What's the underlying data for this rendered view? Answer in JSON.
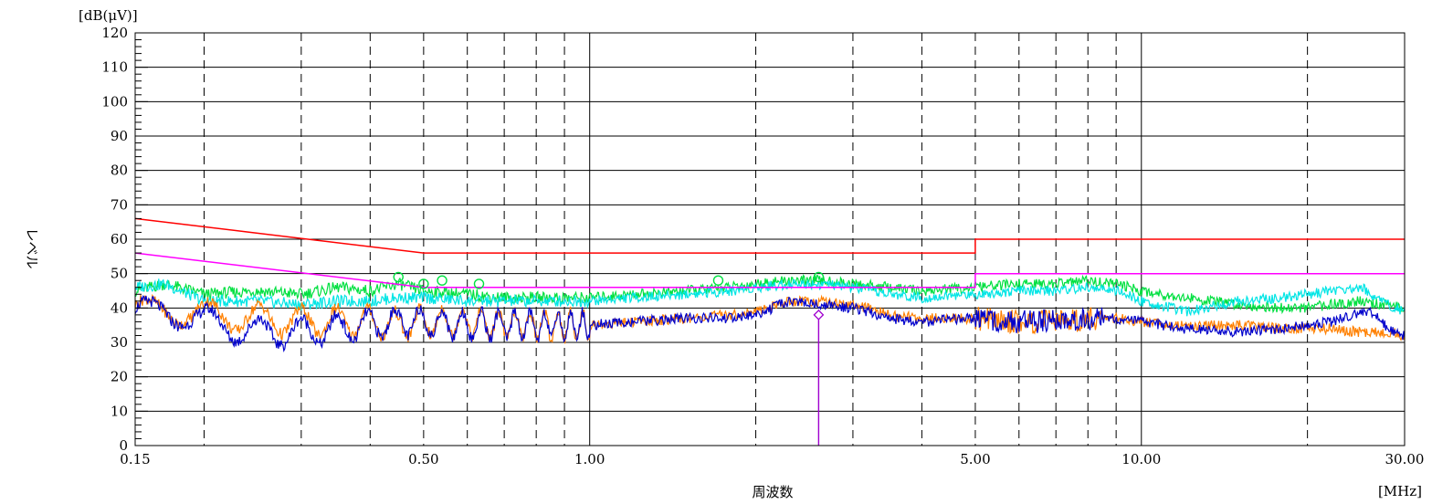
{
  "chart_data": {
    "type": "line",
    "title": "",
    "xlabel": "周波数",
    "ylabel": "レベル",
    "yunit": "[dB(μV)]",
    "xunit": "[MHz]",
    "xscale": "log",
    "xlim": [
      0.15,
      30.0
    ],
    "ylim": [
      0,
      120
    ],
    "grid": true,
    "legend": "none",
    "y_ticks": [
      0,
      10,
      20,
      30,
      40,
      50,
      60,
      70,
      80,
      90,
      100,
      110,
      120
    ],
    "x_tick_labels": [
      {
        "value": 0.15,
        "label": "0.15"
      },
      {
        "value": 0.5,
        "label": "0.50"
      },
      {
        "value": 1.0,
        "label": "1.00"
      },
      {
        "value": 5.0,
        "label": "5.00"
      },
      {
        "value": 10.0,
        "label": "10.00"
      },
      {
        "value": 30.0,
        "label": "30.00"
      }
    ],
    "x_major_grid": [
      1.0,
      10.0
    ],
    "x_minor_grid": [
      0.2,
      0.3,
      0.4,
      0.5,
      0.6,
      0.7,
      0.8,
      0.9,
      2.0,
      3.0,
      4.0,
      5.0,
      6.0,
      7.0,
      8.0,
      9.0,
      20.0
    ],
    "series": [
      {
        "color": "#ff0000",
        "x": [
          0.15,
          0.5,
          0.5,
          5.0,
          5.0,
          30.0
        ],
        "y": [
          66,
          56,
          56,
          56,
          60,
          60
        ]
      },
      {
        "color": "#ff00ff",
        "x": [
          0.15,
          0.5,
          0.5,
          5.0,
          5.0,
          30.0
        ],
        "y": [
          56,
          46,
          46,
          46,
          50,
          50
        ]
      },
      {
        "color": "#00e040",
        "x": [
          0.15,
          0.17,
          0.2,
          0.25,
          0.3,
          0.35,
          0.4,
          0.45,
          0.5,
          0.6,
          0.7,
          0.8,
          1.0,
          1.2,
          1.5,
          1.8,
          2.0,
          2.3,
          2.6,
          3.0,
          3.5,
          4.0,
          5.0,
          6.0,
          7.0,
          8.0,
          9.0,
          10.0,
          12.0,
          15.0,
          18.0,
          20.0,
          22.0,
          25.0,
          30.0
        ],
        "y": [
          45,
          47,
          44,
          45,
          44,
          46,
          45,
          47,
          45,
          44,
          43,
          43,
          43,
          44,
          45,
          46,
          47,
          48,
          48,
          47,
          46,
          45,
          46,
          47,
          47,
          48,
          47,
          45,
          43,
          41,
          40,
          40,
          41,
          42,
          40
        ]
      },
      {
        "color": "#00e5e5",
        "x": [
          0.15,
          0.17,
          0.2,
          0.25,
          0.3,
          0.35,
          0.4,
          0.45,
          0.5,
          0.6,
          0.7,
          0.8,
          1.0,
          1.2,
          1.5,
          1.8,
          2.0,
          2.3,
          2.6,
          3.0,
          3.5,
          4.0,
          5.0,
          6.0,
          7.0,
          8.0,
          9.0,
          10.0,
          12.0,
          15.0,
          18.0,
          20.0,
          22.0,
          25.0,
          28.0,
          30.0
        ],
        "y": [
          46,
          47,
          42,
          42,
          41,
          42,
          42,
          43,
          43,
          42,
          42,
          42,
          42,
          43,
          44,
          45,
          46,
          47,
          47,
          46,
          44,
          43,
          44,
          45,
          45,
          46,
          45,
          42,
          39,
          42,
          43,
          44,
          45,
          46,
          41,
          39
        ]
      },
      {
        "color": "#ff8000",
        "x": [
          0.15,
          0.17,
          0.2,
          0.25,
          0.3,
          0.35,
          0.4,
          0.45,
          0.5,
          0.6,
          0.7,
          0.8,
          1.0,
          1.2,
          1.5,
          1.8,
          2.0,
          2.3,
          2.6,
          3.0,
          3.5,
          4.0,
          5.0,
          6.0,
          7.0,
          8.0,
          9.0,
          10.0,
          12.0,
          15.0,
          18.0,
          20.0,
          22.0,
          25.0,
          28.0,
          30.0
        ],
        "y": [
          38,
          40,
          38,
          37,
          36,
          36,
          36,
          35,
          36,
          36,
          35,
          35,
          35,
          36,
          37,
          38,
          39,
          42,
          42,
          41,
          38,
          37,
          37,
          36,
          36,
          37,
          37,
          36,
          35,
          35,
          34,
          34,
          34,
          33,
          33,
          32
        ]
      },
      {
        "color": "#0000cc",
        "x": [
          0.15,
          0.17,
          0.2,
          0.25,
          0.3,
          0.35,
          0.4,
          0.45,
          0.5,
          0.6,
          0.7,
          0.8,
          1.0,
          1.2,
          1.5,
          1.8,
          2.0,
          2.3,
          2.6,
          3.0,
          3.5,
          4.0,
          5.0,
          6.0,
          7.0,
          8.0,
          9.0,
          10.0,
          12.0,
          15.0,
          18.0,
          20.0,
          22.0,
          24.0,
          26.0,
          28.0,
          30.0
        ],
        "y": [
          37,
          40,
          36,
          33,
          33,
          34,
          35,
          36,
          36,
          35,
          35,
          35,
          35,
          36,
          37,
          37,
          38,
          42,
          41,
          40,
          37,
          36,
          37,
          36,
          36,
          37,
          37,
          36,
          34,
          33,
          34,
          35,
          36,
          38,
          39,
          34,
          32
        ]
      }
    ],
    "peak_markers": [
      {
        "x": 0.45,
        "y": 49,
        "color": "#00e040"
      },
      {
        "x": 0.5,
        "y": 47,
        "color": "#00e040"
      },
      {
        "x": 0.54,
        "y": 48,
        "color": "#00e040"
      },
      {
        "x": 0.63,
        "y": 47,
        "color": "#00e040"
      },
      {
        "x": 1.71,
        "y": 48,
        "color": "#00e040"
      },
      {
        "x": 2.6,
        "y": 49,
        "color": "#00e040"
      }
    ],
    "vertical_marker": {
      "x": 2.6,
      "y": 38,
      "color": "#a000d0"
    }
  }
}
